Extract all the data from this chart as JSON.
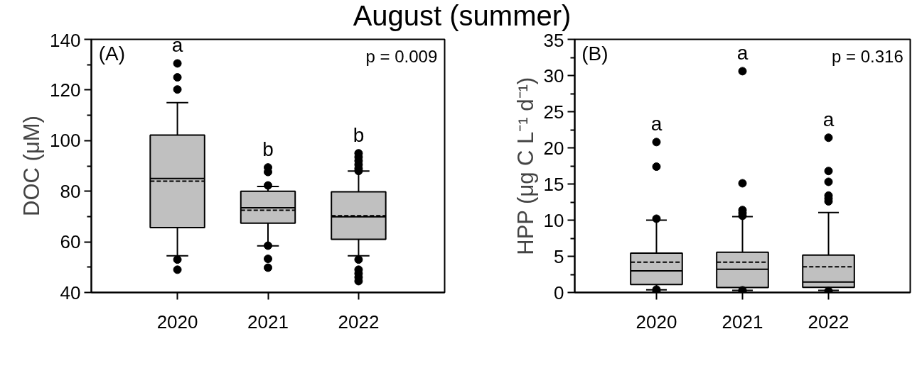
{
  "chart_data": [
    {
      "type": "box",
      "title": "August (summer)",
      "ylabel": "DOC (μM)",
      "categories": [
        "2020",
        "2021",
        "2022"
      ],
      "boxes": [
        {
          "low": 54.5,
          "q1": 65.6,
          "median": 85,
          "q3": 102.2,
          "high": 115,
          "mean": 84,
          "outliers": [
            130.5,
            125,
            120.2,
            53,
            49
          ]
        },
        {
          "low": 58.4,
          "q1": 67.4,
          "median": 73.5,
          "q3": 80,
          "high": 81.9,
          "mean": 72.5,
          "outliers": [
            89.4,
            87.6,
            82.3,
            58.5,
            53.3,
            49.8
          ]
        },
        {
          "low": 54.5,
          "q1": 61,
          "median": 69.9,
          "q3": 79.8,
          "high": 88,
          "mean": 70.3,
          "outliers": [
            95,
            93.5,
            92,
            90.5,
            89,
            88,
            53,
            49,
            47.5,
            46,
            44.5
          ]
        }
      ],
      "color": "#c0c0c0",
      "marker": "circle",
      "grid": false,
      "ylim": [
        40,
        140
      ],
      "yticks": [
        40,
        {
          "value": 50,
          "label": null
        },
        60,
        {
          "value": 70,
          "label": null
        },
        80,
        {
          "value": 90,
          "label": null
        },
        100,
        {
          "value": 110,
          "label": null
        },
        120,
        {
          "value": 130,
          "label": null
        },
        140
      ],
      "annotations": [
        "(A)",
        "p = 0.009",
        "a",
        "b",
        "b"
      ]
    },
    {
      "type": "box",
      "ylabel": "HPP (μg C L⁻¹ d⁻¹)",
      "categories": [
        "2020",
        "2021",
        "2022"
      ],
      "boxes": [
        {
          "low": 0.36,
          "q1": 1.1,
          "median": 3.0,
          "q3": 5.45,
          "high": 10.0,
          "mean": 4.2,
          "outliers": [
            20.8,
            17.4,
            10.2,
            0.4,
            0.1
          ]
        },
        {
          "low": 0.3,
          "q1": 0.68,
          "median": 3.2,
          "q3": 5.57,
          "high": 10.5,
          "mean": 4.2,
          "outliers": [
            30.6,
            15.1,
            11.4,
            11.0,
            10.6,
            0.3,
            0.1
          ]
        },
        {
          "low": 0.3,
          "q1": 0.7,
          "median": 1.44,
          "q3": 5.17,
          "high": 11.05,
          "mean": 3.56,
          "outliers": [
            21.4,
            16.8,
            15.3,
            13.4,
            13.0,
            12.6,
            0.2
          ]
        }
      ],
      "color": "#c0c0c0",
      "marker": "circle",
      "grid": false,
      "ylim": [
        0,
        35
      ],
      "yticks": [
        0,
        {
          "value": 2.5,
          "label": null
        },
        5,
        {
          "value": 7.5,
          "label": null
        },
        10,
        {
          "value": 12.5,
          "label": null
        },
        15,
        {
          "value": 17.5,
          "label": null
        },
        20,
        {
          "value": 22.5,
          "label": null
        },
        25,
        {
          "value": 27.5,
          "label": null
        },
        30,
        {
          "value": 32.5,
          "label": null
        },
        35
      ],
      "annotations": [
        "(B)",
        "p = 0.316",
        "a",
        "a",
        "a"
      ]
    }
  ]
}
